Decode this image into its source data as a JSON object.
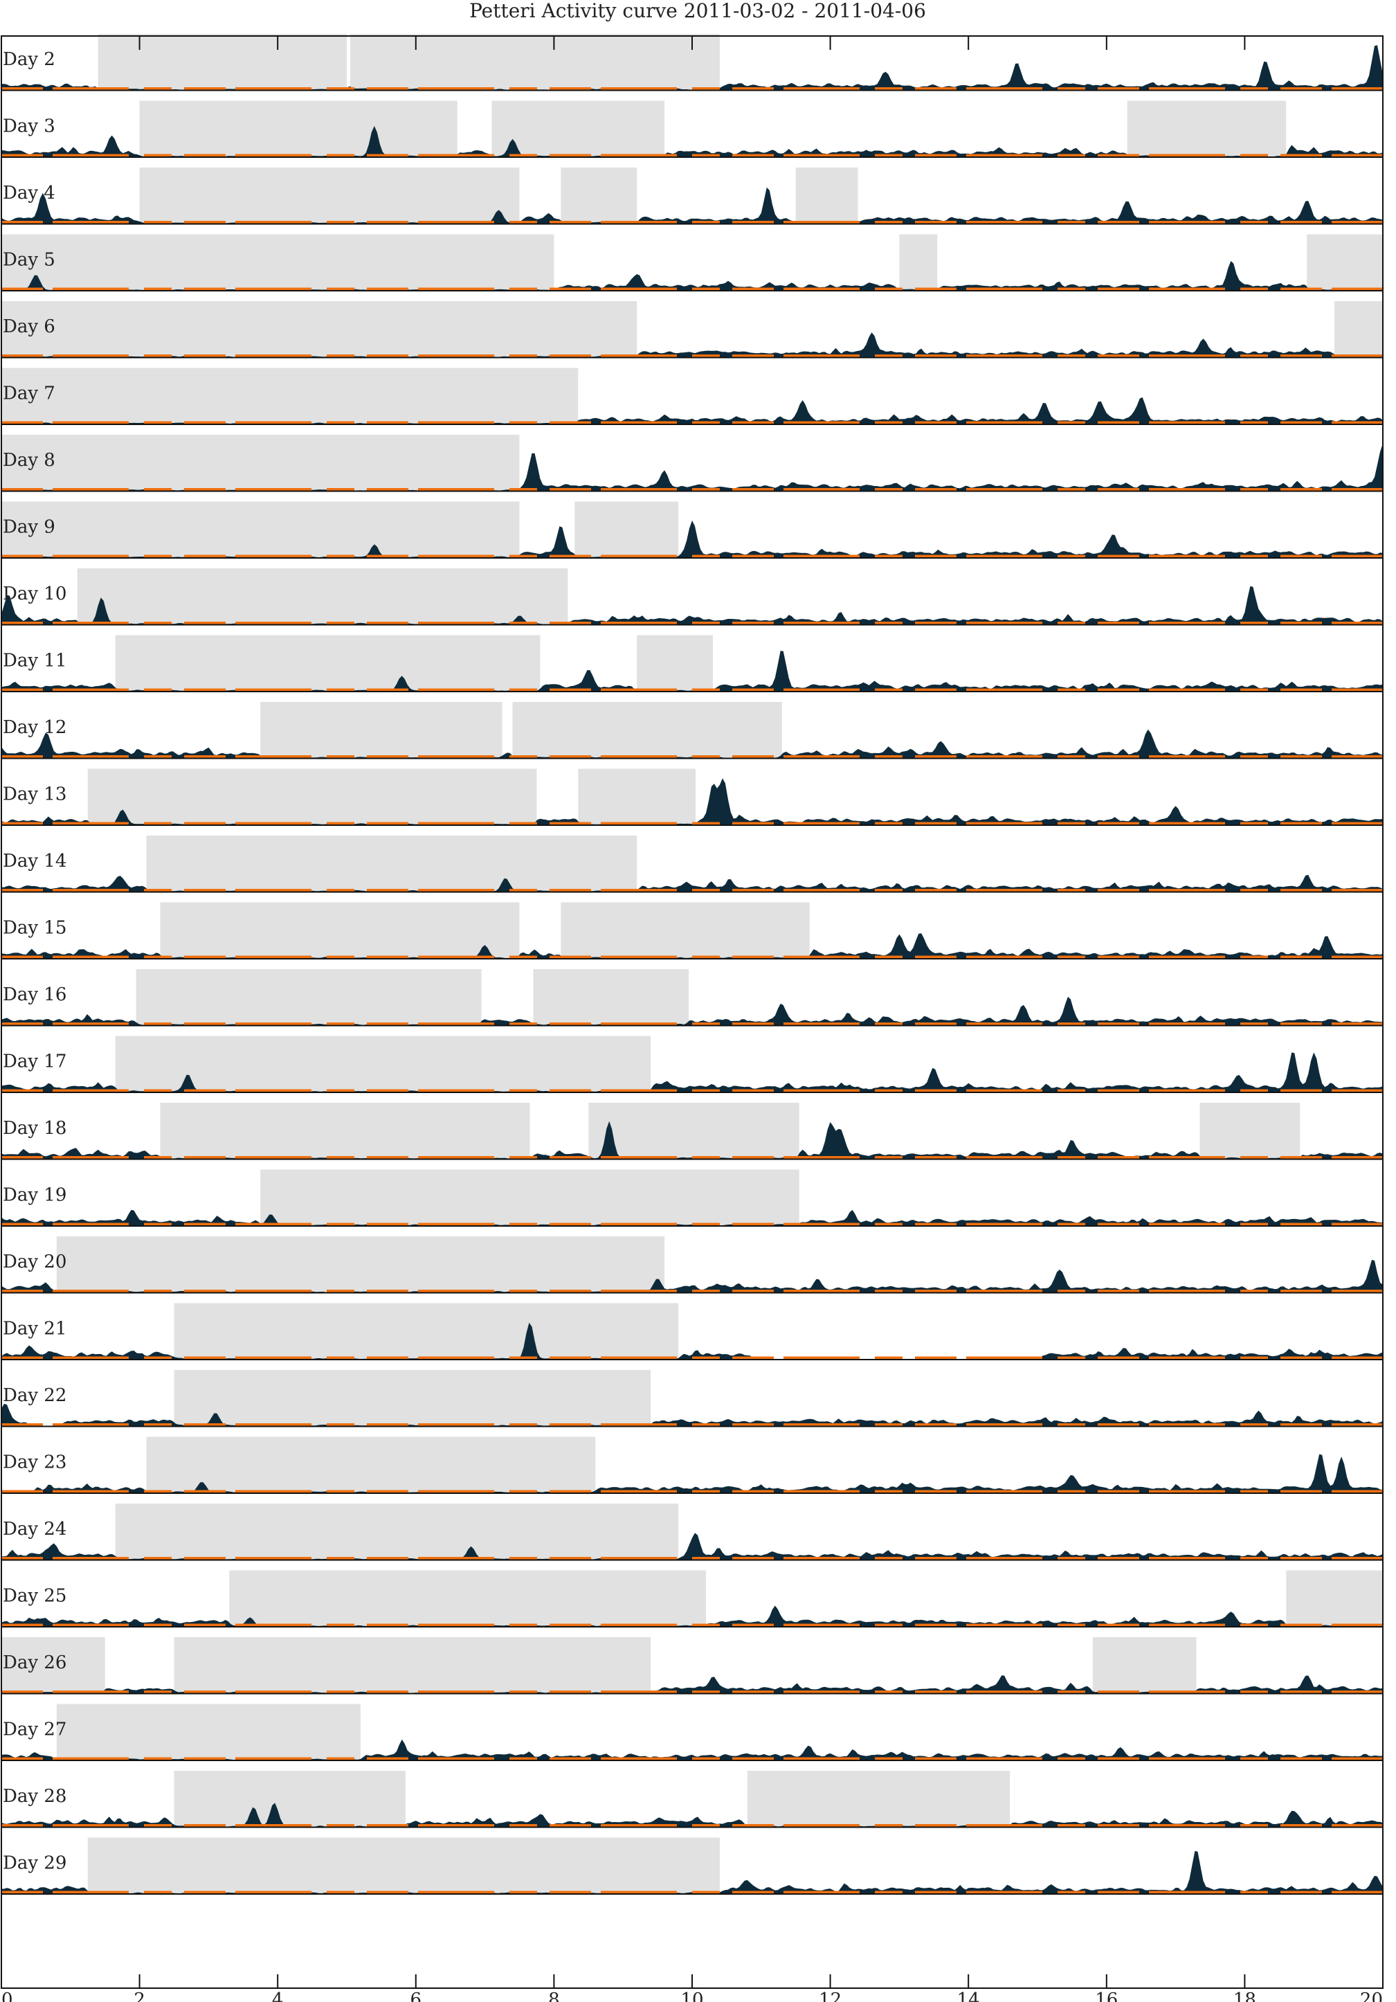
{
  "chart_data": {
    "type": "area",
    "title": "Petteri Activity curve 2011-03-02 - 2011-04-06",
    "xlabel": "",
    "ylabel": "",
    "xlim": [
      0,
      20
    ],
    "xticks": [
      0,
      2,
      4,
      6,
      8,
      10,
      12,
      14,
      16,
      18,
      20
    ],
    "xtick_labels": [
      "0",
      "2",
      "4",
      "6",
      "8",
      "10",
      "12",
      "14",
      "16",
      "18",
      "20"
    ],
    "colors": {
      "activity": "#0e2a3a",
      "sleep": "#e0e1e0",
      "marker": "#f07010",
      "frame": "#111111"
    },
    "days": [
      {
        "label": "Day 2",
        "sleep": [
          [
            1.4,
            5.0
          ],
          [
            5.05,
            10.4
          ]
        ],
        "peaks": [
          [
            19.9,
            1.0
          ],
          [
            18.3,
            0.6
          ],
          [
            14.7,
            0.55
          ],
          [
            12.8,
            0.3
          ]
        ],
        "gaps": []
      },
      {
        "label": "Day 3",
        "sleep": [
          [
            2.0,
            6.6
          ],
          [
            7.1,
            9.6
          ],
          [
            16.3,
            18.6
          ]
        ],
        "peaks": [
          [
            5.4,
            0.7
          ],
          [
            1.6,
            0.4
          ],
          [
            7.4,
            0.4
          ]
        ],
        "gaps": []
      },
      {
        "label": "Day 4",
        "sleep": [
          [
            2.0,
            7.5
          ],
          [
            8.1,
            9.2
          ],
          [
            11.5,
            12.4
          ]
        ],
        "peaks": [
          [
            0.6,
            0.6
          ],
          [
            11.1,
            0.65
          ],
          [
            7.2,
            0.3
          ],
          [
            18.9,
            0.4
          ],
          [
            16.3,
            0.45
          ]
        ],
        "gaps": []
      },
      {
        "label": "Day 5",
        "sleep": [
          [
            0.0,
            8.0
          ],
          [
            13.0,
            13.55
          ],
          [
            18.9,
            20.0
          ]
        ],
        "peaks": [
          [
            17.8,
            0.55
          ],
          [
            9.2,
            0.3
          ],
          [
            0.5,
            0.35
          ]
        ],
        "gaps": []
      },
      {
        "label": "Day 6",
        "sleep": [
          [
            0.0,
            9.2
          ],
          [
            19.3,
            20.0
          ]
        ],
        "peaks": [
          [
            12.6,
            0.5
          ],
          [
            17.4,
            0.3
          ]
        ],
        "gaps": []
      },
      {
        "label": "Day 7",
        "sleep": [
          [
            0.0,
            8.35
          ]
        ],
        "peaks": [
          [
            15.9,
            0.45
          ],
          [
            16.5,
            0.5
          ],
          [
            11.6,
            0.4
          ],
          [
            15.1,
            0.4
          ]
        ],
        "gaps": []
      },
      {
        "label": "Day 8",
        "sleep": [
          [
            0.0,
            7.5
          ]
        ],
        "peaks": [
          [
            7.7,
            0.8
          ],
          [
            20.0,
            0.95
          ],
          [
            9.6,
            0.35
          ]
        ],
        "gaps": []
      },
      {
        "label": "Day 9",
        "sleep": [
          [
            0.0,
            7.5
          ],
          [
            8.3,
            9.8
          ]
        ],
        "peaks": [
          [
            8.1,
            0.65
          ],
          [
            10.0,
            0.75
          ],
          [
            5.4,
            0.3
          ],
          [
            16.1,
            0.45
          ]
        ],
        "gaps": []
      },
      {
        "label": "Day 10",
        "sleep": [
          [
            1.1,
            8.2
          ]
        ],
        "peaks": [
          [
            0.1,
            0.6
          ],
          [
            1.45,
            0.6
          ],
          [
            18.1,
            0.8
          ],
          [
            7.5,
            0.2
          ]
        ],
        "gaps": []
      },
      {
        "label": "Day 11",
        "sleep": [
          [
            1.65,
            7.8
          ],
          [
            9.2,
            10.3
          ]
        ],
        "peaks": [
          [
            11.3,
            0.9
          ],
          [
            8.5,
            0.45
          ],
          [
            5.8,
            0.35
          ]
        ],
        "gaps": []
      },
      {
        "label": "Day 12",
        "sleep": [
          [
            3.75,
            7.25
          ],
          [
            7.4,
            11.3
          ]
        ],
        "peaks": [
          [
            0.65,
            0.45
          ],
          [
            16.6,
            0.55
          ],
          [
            13.6,
            0.3
          ]
        ],
        "gaps": []
      },
      {
        "label": "Day 13",
        "sleep": [
          [
            1.25,
            7.75
          ],
          [
            8.35,
            10.05
          ]
        ],
        "peaks": [
          [
            10.45,
            1.0
          ],
          [
            10.3,
            0.8
          ],
          [
            17.0,
            0.35
          ],
          [
            1.75,
            0.35
          ]
        ],
        "gaps": []
      },
      {
        "label": "Day 14",
        "sleep": [
          [
            2.1,
            9.2
          ]
        ],
        "peaks": [
          [
            7.3,
            0.3
          ],
          [
            18.9,
            0.3
          ],
          [
            1.7,
            0.3
          ]
        ],
        "gaps": []
      },
      {
        "label": "Day 15",
        "sleep": [
          [
            2.3,
            7.5
          ],
          [
            8.1,
            11.7
          ]
        ],
        "peaks": [
          [
            13.3,
            0.5
          ],
          [
            13.0,
            0.45
          ],
          [
            7.0,
            0.3
          ],
          [
            19.2,
            0.35
          ]
        ],
        "gaps": []
      },
      {
        "label": "Day 16",
        "sleep": [
          [
            1.95,
            6.95
          ],
          [
            7.7,
            9.95
          ]
        ],
        "peaks": [
          [
            15.45,
            0.55
          ],
          [
            11.3,
            0.35
          ],
          [
            14.8,
            0.3
          ]
        ],
        "gaps": []
      },
      {
        "label": "Day 17",
        "sleep": [
          [
            1.65,
            9.4
          ]
        ],
        "peaks": [
          [
            18.7,
            0.85
          ],
          [
            19.0,
            0.8
          ],
          [
            2.7,
            0.4
          ],
          [
            13.5,
            0.45
          ],
          [
            17.9,
            0.3
          ]
        ],
        "gaps": []
      },
      {
        "label": "Day 18",
        "sleep": [
          [
            2.3,
            7.65
          ],
          [
            8.5,
            11.55
          ],
          [
            17.35,
            18.8
          ]
        ],
        "peaks": [
          [
            8.8,
            0.85
          ],
          [
            12.0,
            0.7
          ],
          [
            12.15,
            0.55
          ],
          [
            15.5,
            0.35
          ]
        ],
        "gaps": []
      },
      {
        "label": "Day 19",
        "sleep": [
          [
            3.75,
            11.55
          ]
        ],
        "peaks": [
          [
            3.9,
            0.25
          ],
          [
            1.9,
            0.25
          ],
          [
            12.3,
            0.2
          ]
        ],
        "gaps": []
      },
      {
        "label": "Day 20",
        "sleep": [
          [
            0.8,
            9.6
          ]
        ],
        "peaks": [
          [
            19.85,
            0.6
          ],
          [
            15.3,
            0.35
          ],
          [
            9.5,
            0.3
          ]
        ],
        "gaps": []
      },
      {
        "label": "Day 21",
        "sleep": [
          [
            2.5,
            9.8
          ]
        ],
        "peaks": [
          [
            7.65,
            0.85
          ],
          [
            0.4,
            0.2
          ]
        ],
        "gaps": [
          [
            10.85,
            15.0
          ]
        ]
      },
      {
        "label": "Day 22",
        "sleep": [
          [
            2.5,
            9.4
          ]
        ],
        "peaks": [
          [
            0.05,
            0.4
          ],
          [
            3.1,
            0.3
          ],
          [
            18.2,
            0.25
          ]
        ],
        "gaps": [
          [
            0.4,
            0.8
          ]
        ]
      },
      {
        "label": "Day 23",
        "sleep": [
          [
            2.1,
            8.6
          ]
        ],
        "peaks": [
          [
            19.1,
            0.8
          ],
          [
            19.4,
            0.7
          ],
          [
            15.5,
            0.35
          ],
          [
            2.9,
            0.25
          ]
        ],
        "gaps": [
          [
            0.0,
            0.45
          ]
        ]
      },
      {
        "label": "Day 24",
        "sleep": [
          [
            1.65,
            9.8
          ]
        ],
        "peaks": [
          [
            0.75,
            0.3
          ],
          [
            10.05,
            0.5
          ],
          [
            6.8,
            0.3
          ]
        ],
        "gaps": []
      },
      {
        "label": "Day 25",
        "sleep": [
          [
            3.3,
            10.2
          ],
          [
            18.6,
            20.0
          ]
        ],
        "peaks": [
          [
            11.2,
            0.35
          ],
          [
            3.6,
            0.2
          ],
          [
            17.8,
            0.25
          ]
        ],
        "gaps": []
      },
      {
        "label": "Day 26",
        "sleep": [
          [
            0.0,
            1.5
          ],
          [
            2.5,
            9.4
          ],
          [
            15.8,
            17.3
          ]
        ],
        "peaks": [
          [
            14.5,
            0.3
          ],
          [
            10.3,
            0.3
          ],
          [
            18.9,
            0.3
          ]
        ],
        "gaps": []
      },
      {
        "label": "Day 27",
        "sleep": [
          [
            0.8,
            5.2
          ]
        ],
        "peaks": [
          [
            5.8,
            0.25
          ],
          [
            11.7,
            0.2
          ],
          [
            16.2,
            0.2
          ]
        ],
        "gaps": []
      },
      {
        "label": "Day 28",
        "sleep": [
          [
            2.5,
            5.85
          ],
          [
            10.8,
            14.6
          ]
        ],
        "peaks": [
          [
            3.95,
            0.55
          ],
          [
            3.65,
            0.45
          ],
          [
            18.7,
            0.3
          ],
          [
            7.8,
            0.2
          ]
        ],
        "gaps": []
      },
      {
        "label": "Day 29",
        "sleep": [
          [
            1.25,
            10.4
          ]
        ],
        "peaks": [
          [
            17.3,
            0.95
          ],
          [
            19.9,
            0.3
          ],
          [
            10.8,
            0.2
          ]
        ],
        "gaps": []
      }
    ]
  }
}
